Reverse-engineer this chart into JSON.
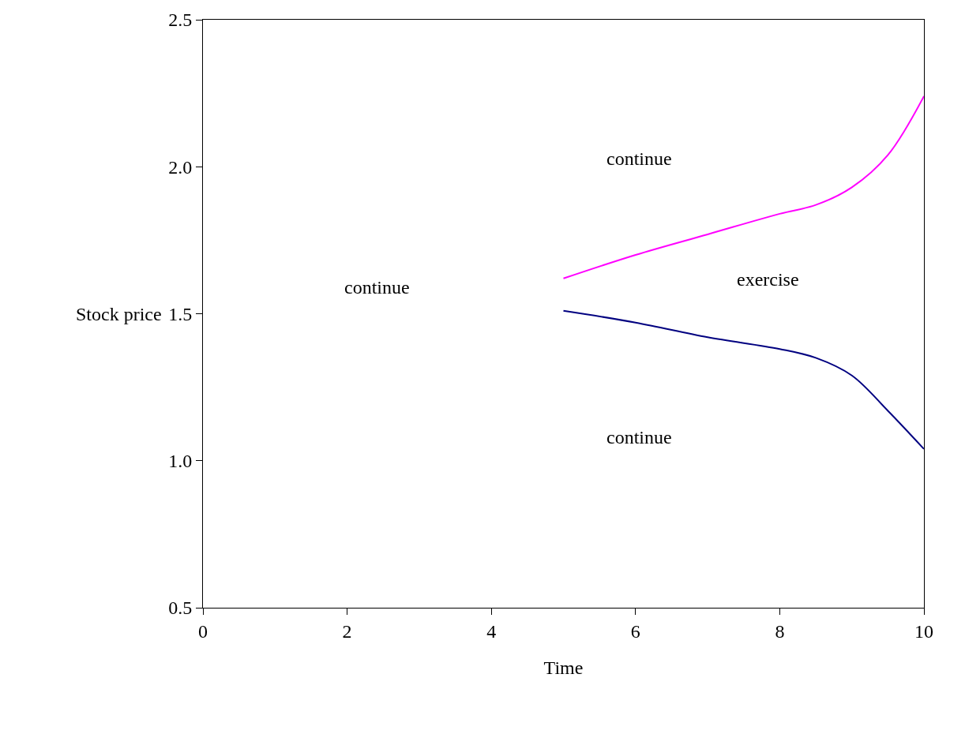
{
  "chart_data": {
    "type": "line",
    "xlabel": "Time",
    "ylabel": "Stock price",
    "x": [
      5,
      6,
      7,
      8,
      8.5,
      9,
      9.5,
      10
    ],
    "series": [
      {
        "color": "#ff00ff",
        "values": [
          1.62,
          1.7,
          1.77,
          1.84,
          1.87,
          1.93,
          2.04,
          2.24
        ]
      },
      {
        "color": "#000080",
        "values": [
          1.51,
          1.47,
          1.42,
          1.38,
          1.35,
          1.29,
          1.17,
          1.04
        ]
      }
    ],
    "xlim": [
      0,
      10
    ],
    "xticks": [
      0,
      2,
      4,
      6,
      8,
      10
    ],
    "ylim": [
      0.5,
      2.5
    ],
    "yticks": [
      {
        "value": 0.5,
        "label": "0.5"
      },
      {
        "value": 1,
        "label": "1.0"
      },
      {
        "value": 1.5,
        "label": "1.5"
      },
      {
        "value": 2,
        "label": "2.0"
      },
      {
        "value": 2.5,
        "label": "2.5"
      }
    ],
    "annotations": [
      "continue",
      "continue",
      "exercise",
      "continue"
    ],
    "legend": false,
    "marker": "none",
    "line_style": "solid"
  }
}
